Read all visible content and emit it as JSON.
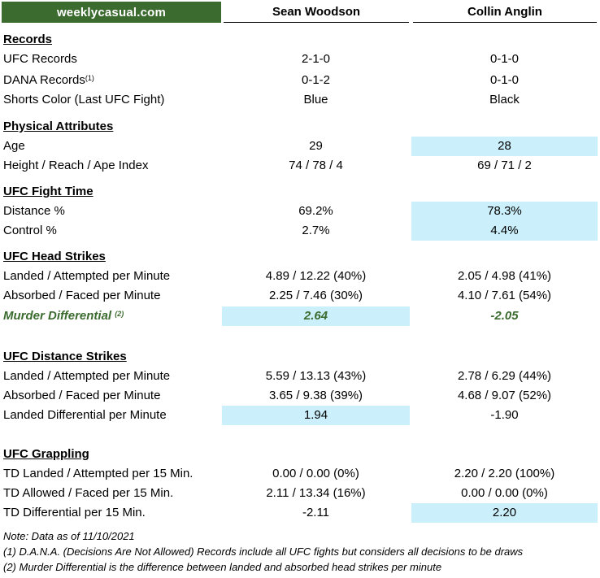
{
  "header": {
    "brand": "weeklycasual.com",
    "fighter_a": "Sean Woodson",
    "fighter_b": "Collin Anglin"
  },
  "sections": {
    "records": "Records",
    "physical": "Physical Attributes",
    "fight_time": "UFC Fight Time",
    "head_strikes": "UFC Head Strikes",
    "distance_strikes": "UFC Distance Strikes",
    "grappling": "UFC Grappling"
  },
  "rows": {
    "ufc_records": {
      "label": "UFC Records",
      "a": "2-1-0",
      "b": "0-1-0"
    },
    "dana_records": {
      "label": "DANA Records",
      "sup": "(1)",
      "a": "0-1-2",
      "b": "0-1-0"
    },
    "shorts": {
      "label": "Shorts Color (Last UFC Fight)",
      "a": "Blue",
      "b": "Black"
    },
    "age": {
      "label": "Age",
      "a": "29",
      "b": "28"
    },
    "height": {
      "label": "Height / Reach / Ape Index",
      "a": "74 / 78 / 4",
      "b": "69 / 71 / 2"
    },
    "distance_pct": {
      "label": "Distance %",
      "a": "69.2%",
      "b": "78.3%"
    },
    "control_pct": {
      "label": "Control %",
      "a": "2.7%",
      "b": "4.4%"
    },
    "head_landed": {
      "label": "Landed / Attempted per Minute",
      "a": "4.89 / 12.22 (40%)",
      "b": "2.05 / 4.98 (41%)"
    },
    "head_absorbed": {
      "label": "Absorbed / Faced per Minute",
      "a": "2.25 / 7.46 (30%)",
      "b": "4.10 / 7.61 (54%)"
    },
    "murder": {
      "label": "Murder Differential",
      "sup": "(2)",
      "a": "2.64",
      "b": "-2.05"
    },
    "dist_landed": {
      "label": "Landed / Attempted per Minute",
      "a": "5.59 / 13.13 (43%)",
      "b": "2.78 / 6.29 (44%)"
    },
    "dist_absorbed": {
      "label": "Absorbed / Faced per Minute",
      "a": "3.65 / 9.38 (39%)",
      "b": "4.68 / 9.07 (52%)"
    },
    "dist_diff": {
      "label": "Landed Differential per Minute",
      "a": "1.94",
      "b": "-1.90"
    },
    "td_landed": {
      "label": "TD Landed / Attempted per 15 Min.",
      "a": "0.00 / 0.00 (0%)",
      "b": "2.20 / 2.20 (100%)"
    },
    "td_allowed": {
      "label": "TD Allowed / Faced per 15 Min.",
      "a": "2.11 / 13.34 (16%)",
      "b": "0.00 / 0.00 (0%)"
    },
    "td_diff": {
      "label": "TD Differential per 15 Min.",
      "a": "-2.11",
      "b": "2.20"
    }
  },
  "notes": {
    "date": "Note: Data as of 11/10/2021",
    "n1": "(1) D.A.N.A. (Decisions Are Not Allowed) Records include all UFC fights but considers all decisions to be draws",
    "n2": "(2) Murder Differential is the difference between landed and absorbed head strikes per minute"
  },
  "colors": {
    "brand_green": "#3b6b2f",
    "highlight": "#ccf0fb"
  }
}
